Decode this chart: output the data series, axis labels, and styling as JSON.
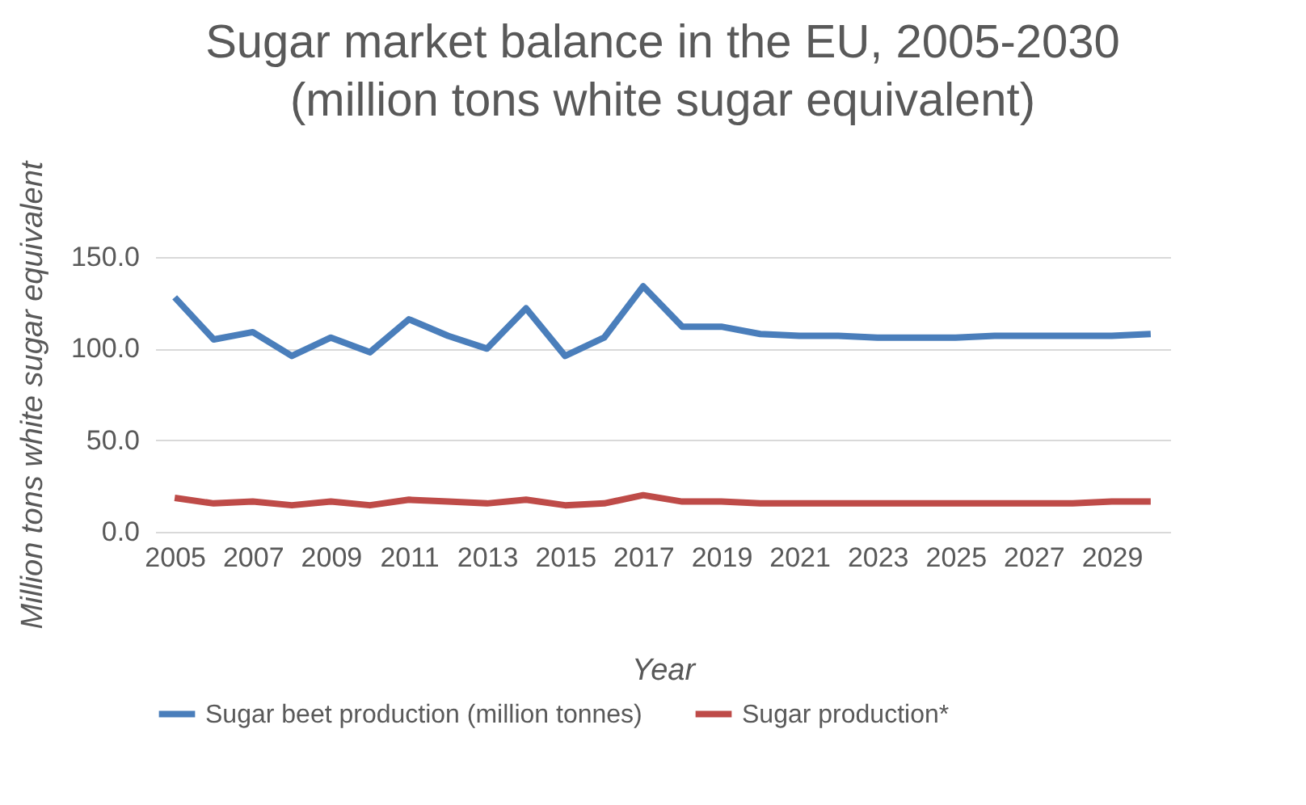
{
  "chart_data": {
    "type": "line",
    "title": "Sugar market balance in the EU, 2005-2030 (million tons white sugar equivalent)",
    "xlabel": "Year",
    "ylabel": "Million tons white sugar equivalent",
    "categories": [
      "2005",
      null,
      "2007",
      null,
      "2009",
      null,
      "2011",
      null,
      "2013",
      null,
      "2015",
      null,
      "2017",
      null,
      "2019",
      null,
      "2021",
      null,
      "2023",
      null,
      "2025",
      null,
      "2027",
      null,
      "2029",
      null
    ],
    "series": [
      {
        "name": "Sugar beet production (million tonnes)",
        "color": "#4a7ebb",
        "values": [
          128,
          105,
          109,
          96,
          106,
          98,
          116,
          107,
          100,
          122,
          96,
          106,
          134,
          112,
          112,
          108,
          107,
          107,
          106,
          106,
          106,
          107,
          107,
          107,
          107,
          108
        ]
      },
      {
        "name": "Sugar production*",
        "color": "#be4b48",
        "values": [
          18.5,
          15.5,
          16.5,
          14.5,
          16.5,
          14.5,
          17.5,
          16.5,
          15.5,
          17.5,
          14.5,
          15.5,
          20,
          16.5,
          16.5,
          15.5,
          15.5,
          15.5,
          15.5,
          15.5,
          15.5,
          15.5,
          15.5,
          15.5,
          16.5,
          16.5
        ]
      }
    ],
    "ylim": [
      0,
      150
    ],
    "yticks": [
      {
        "value": 0,
        "label": "0.0"
      },
      {
        "value": 50,
        "label": "50.0"
      },
      {
        "value": 100,
        "label": "100.0"
      },
      {
        "value": 150,
        "label": "150.0"
      }
    ],
    "grid": "y",
    "legend": "bottom",
    "marker": "none",
    "line_style": "solid"
  }
}
